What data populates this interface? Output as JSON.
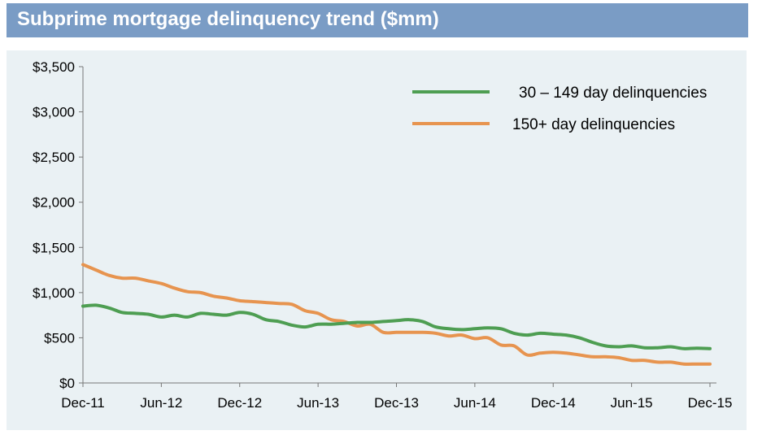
{
  "header": {
    "title": "Subprime mortgage delinquency trend ($mm)"
  },
  "colors": {
    "title_bar": "#7a9cc5",
    "plot_bg": "#eaf1f4",
    "green": "#4e9e52",
    "orange": "#e7944f"
  },
  "chart_data": {
    "type": "line",
    "title": "Subprime mortgage delinquency trend ($mm)",
    "xlabel": "",
    "ylabel": "",
    "ylim": [
      0,
      3500
    ],
    "y_ticks": [
      0,
      500,
      1000,
      1500,
      2000,
      2500,
      3000,
      3500
    ],
    "y_tick_labels": [
      "$0",
      "$500",
      "$1,000",
      "$1,500",
      "$2,000",
      "$2,500",
      "$3,000",
      "$3,500"
    ],
    "x_tick_labels": [
      "Dec-11",
      "Jun-12",
      "Dec-12",
      "Jun-13",
      "Dec-13",
      "Jun-14",
      "Dec-14",
      "Jun-15",
      "Dec-15"
    ],
    "x_range": [
      "Dec-11",
      "Dec-15"
    ],
    "grid": false,
    "legend": "top-right",
    "series": [
      {
        "name": "30 – 149 day delinquencies",
        "color": "#4e9e52",
        "x": [
          "Dec-11",
          "Jan-12",
          "Feb-12",
          "Mar-12",
          "Apr-12",
          "May-12",
          "Jun-12",
          "Jul-12",
          "Aug-12",
          "Sep-12",
          "Oct-12",
          "Nov-12",
          "Dec-12",
          "Jan-13",
          "Feb-13",
          "Mar-13",
          "Apr-13",
          "May-13",
          "Jun-13",
          "Jul-13",
          "Aug-13",
          "Sep-13",
          "Oct-13",
          "Nov-13",
          "Dec-13",
          "Jan-14",
          "Feb-14",
          "Mar-14",
          "Apr-14",
          "May-14",
          "Jun-14",
          "Jul-14",
          "Aug-14",
          "Sep-14",
          "Oct-14",
          "Nov-14",
          "Dec-14",
          "Jan-15",
          "Feb-15",
          "Mar-15",
          "Apr-15",
          "May-15",
          "Jun-15",
          "Jul-15",
          "Aug-15",
          "Sep-15",
          "Oct-15",
          "Nov-15",
          "Dec-15"
        ],
        "values": [
          850,
          860,
          830,
          780,
          770,
          760,
          730,
          750,
          730,
          770,
          760,
          750,
          780,
          760,
          700,
          680,
          640,
          620,
          650,
          650,
          660,
          670,
          670,
          680,
          690,
          700,
          680,
          620,
          600,
          590,
          600,
          610,
          600,
          550,
          530,
          550,
          540,
          530,
          500,
          450,
          410,
          400,
          410,
          390,
          390,
          400,
          380,
          385,
          380
        ]
      },
      {
        "name": "150+ day delinquencies",
        "color": "#e7944f",
        "x": [
          "Dec-11",
          "Jan-12",
          "Feb-12",
          "Mar-12",
          "Apr-12",
          "May-12",
          "Jun-12",
          "Jul-12",
          "Aug-12",
          "Sep-12",
          "Oct-12",
          "Nov-12",
          "Dec-12",
          "Jan-13",
          "Feb-13",
          "Mar-13",
          "Apr-13",
          "May-13",
          "Jun-13",
          "Jul-13",
          "Aug-13",
          "Sep-13",
          "Oct-13",
          "Nov-13",
          "Dec-13",
          "Jan-14",
          "Feb-14",
          "Mar-14",
          "Apr-14",
          "May-14",
          "Jun-14",
          "Jul-14",
          "Aug-14",
          "Sep-14",
          "Oct-14",
          "Nov-14",
          "Dec-14",
          "Jan-15",
          "Feb-15",
          "Mar-15",
          "Apr-15",
          "May-15",
          "Jun-15",
          "Jul-15",
          "Aug-15",
          "Sep-15",
          "Oct-15",
          "Nov-15",
          "Dec-15"
        ],
        "values": [
          1310,
          1250,
          1190,
          1160,
          1160,
          1130,
          1100,
          1050,
          1010,
          1000,
          960,
          940,
          910,
          900,
          890,
          880,
          870,
          800,
          770,
          700,
          680,
          630,
          650,
          560,
          560,
          560,
          560,
          550,
          520,
          530,
          490,
          500,
          420,
          410,
          310,
          330,
          340,
          330,
          310,
          290,
          290,
          280,
          250,
          250,
          230,
          230,
          210,
          210,
          210
        ]
      }
    ]
  }
}
